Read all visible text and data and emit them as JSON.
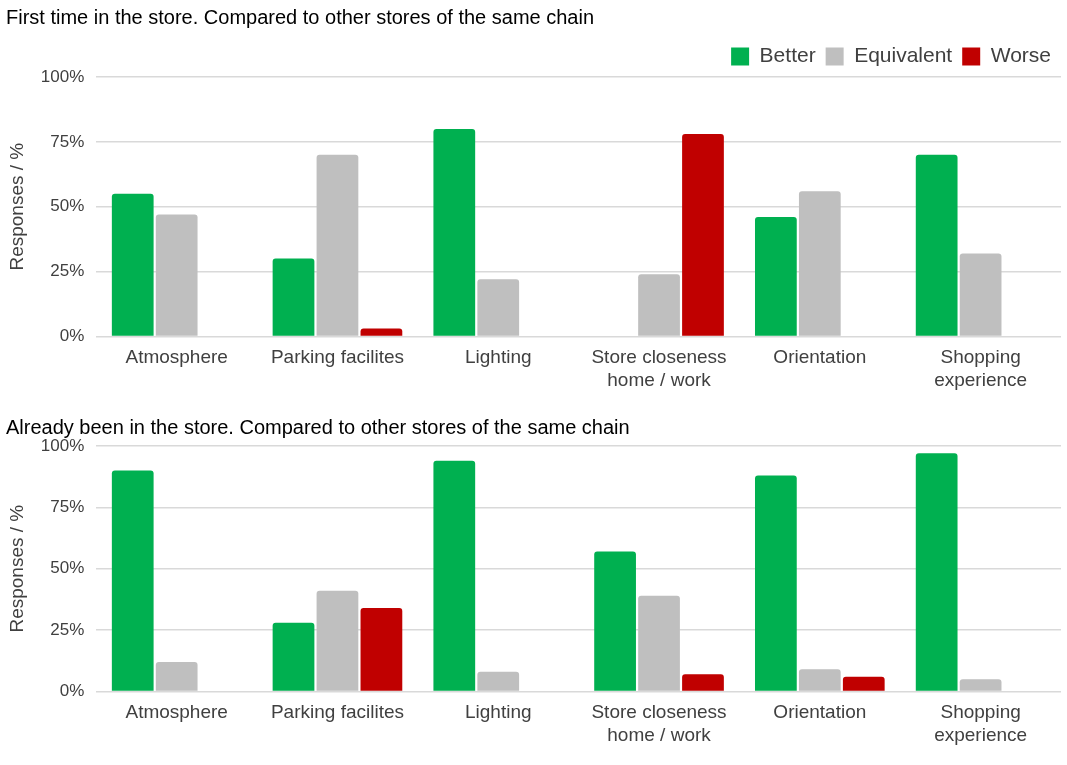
{
  "chart_data": [
    {
      "type": "bar",
      "title": "First time in the store. Compared to other stores of the same chain",
      "ylabel": "Responses / %",
      "categories": [
        "Atmosphere",
        "Parking facilites",
        "Lighting",
        "Store closeness home / work",
        "Orientation",
        "Shopping experience"
      ],
      "series": [
        {
          "name": "Better",
          "color": "#00b050",
          "values": [
            55,
            30,
            80,
            0,
            46,
            70
          ]
        },
        {
          "name": "Equivalent",
          "color": "#bfbfbf",
          "values": [
            47,
            70,
            22,
            24,
            56,
            32
          ]
        },
        {
          "name": "Worse",
          "color": "#c00000",
          "values": [
            0,
            3,
            0,
            78,
            0,
            0
          ]
        }
      ],
      "ylim": [
        0,
        100
      ],
      "yticks": [
        {
          "value": 0,
          "label": "0%"
        },
        {
          "value": 25,
          "label": "25%"
        },
        {
          "value": 50,
          "label": "50%"
        },
        {
          "value": 75,
          "label": "75%"
        },
        {
          "value": 100,
          "label": "100%"
        }
      ],
      "grid": "y",
      "legend": "top right"
    },
    {
      "type": "bar",
      "title": "Already been in the store. Compared to other stores of the same chain",
      "ylabel": "Responses / %",
      "categories": [
        "Atmosphere",
        "Parking facilites",
        "Lighting",
        "Store closeness home / work",
        "Orientation",
        "Shopping experience"
      ],
      "series": [
        {
          "color": "#00b050",
          "values": [
            90,
            28,
            94,
            57,
            88,
            97
          ]
        },
        {
          "color": "#bfbfbf",
          "values": [
            12,
            41,
            8,
            39,
            9,
            5
          ]
        },
        {
          "color": "#c00000",
          "values": [
            0,
            34,
            0,
            7,
            6,
            0
          ]
        }
      ],
      "ylim": [
        0,
        100
      ],
      "yticks": [
        {
          "value": 0,
          "label": "0%"
        },
        {
          "value": 25,
          "label": "25%"
        },
        {
          "value": 50,
          "label": "50%"
        },
        {
          "value": 75,
          "label": "75%"
        },
        {
          "value": 100,
          "label": "100%"
        }
      ],
      "grid": "y"
    }
  ]
}
